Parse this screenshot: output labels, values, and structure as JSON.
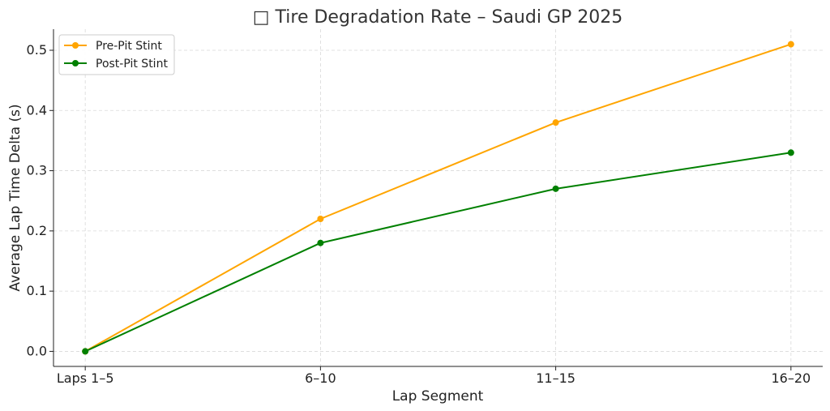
{
  "chart_data": {
    "type": "line",
    "title": "□ Tire Degradation Rate – Saudi GP 2025",
    "xlabel": "Lap Segment",
    "ylabel": "Average Lap Time Delta (s)",
    "categories": [
      "Laps 1–5",
      "6–10",
      "11–15",
      "16–20"
    ],
    "ylim": [
      -0.025,
      0.535
    ],
    "yticks": [
      "0.0",
      "0.1",
      "0.2",
      "0.3",
      "0.4",
      "0.5"
    ],
    "grid": true,
    "legend_position": "top-left",
    "series": [
      {
        "name": "Pre-Pit Stint",
        "color": "#FFA500",
        "values": [
          0.0,
          0.22,
          0.38,
          0.51
        ]
      },
      {
        "name": "Post-Pit Stint",
        "color": "#008000",
        "values": [
          0.0,
          0.18,
          0.27,
          0.33
        ]
      }
    ]
  }
}
